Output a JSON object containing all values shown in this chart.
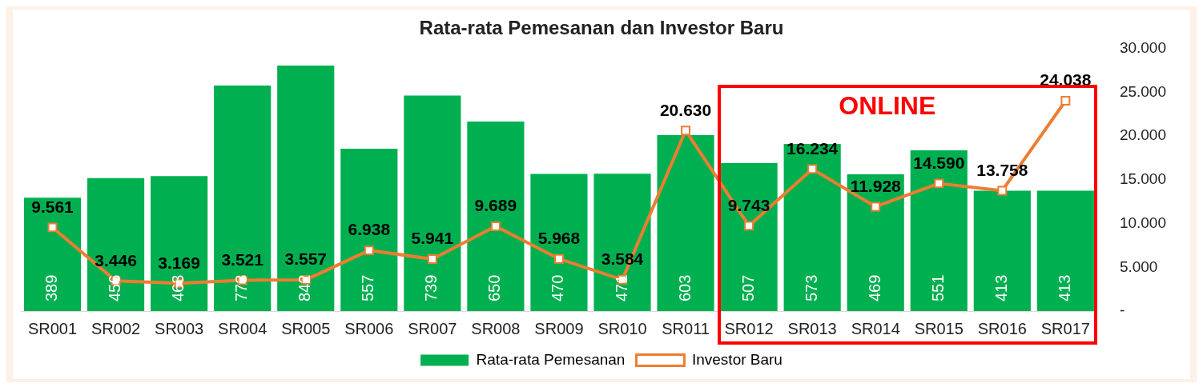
{
  "chart_data": {
    "type": "bar",
    "title": "Rata-rata Pemesanan dan Investor Baru",
    "categories": [
      "SR001",
      "SR002",
      "SR003",
      "SR004",
      "SR005",
      "SR006",
      "SR007",
      "SR008",
      "SR009",
      "SR010",
      "SR011",
      "SR012",
      "SR013",
      "SR014",
      "SR015",
      "SR016",
      "SR017"
    ],
    "series": [
      {
        "name": "Rata-rata Pemesanan",
        "color": "#00b050",
        "values": [
          389,
          456,
          463,
          773,
          842,
          557,
          739,
          650,
          470,
          471,
          603,
          507,
          573,
          469,
          551,
          413,
          413
        ],
        "value_labels": [
          "389",
          "456",
          "463",
          "773",
          "842",
          "557",
          "739",
          "650",
          "470",
          "471",
          "603",
          "507",
          "573",
          "469",
          "551",
          "413",
          "413"
        ]
      },
      {
        "name": "Investor Baru",
        "type": "line",
        "axis": "y2",
        "color": "#ed7d31",
        "values": [
          9561,
          3446,
          3169,
          3521,
          3557,
          6938,
          5941,
          9689,
          5968,
          3584,
          20630,
          9743,
          16234,
          11928,
          14590,
          13758,
          24038
        ],
        "value_labels": [
          "9.561",
          "3.446",
          "3.169",
          "3.521",
          "3.557",
          "6.938",
          "5.941",
          "9.689",
          "5.968",
          "3.584",
          "20.630",
          "9.743",
          "16.234",
          "11.928",
          "14.590",
          "13.758",
          "24.038"
        ]
      }
    ],
    "y2lim": [
      0,
      30000
    ],
    "y2ticks": [
      {
        "value": 0,
        "label": "-"
      },
      {
        "value": 5000,
        "label": "5.000"
      },
      {
        "value": 10000,
        "label": "10.000"
      },
      {
        "value": 15000,
        "label": "15.000"
      },
      {
        "value": 20000,
        "label": "20.000"
      },
      {
        "value": 25000,
        "label": "25.000"
      },
      {
        "value": 30000,
        "label": "30.000"
      }
    ],
    "annotations": [
      "ONLINE"
    ],
    "legend": "bottom",
    "marker": "square",
    "grid": false
  }
}
